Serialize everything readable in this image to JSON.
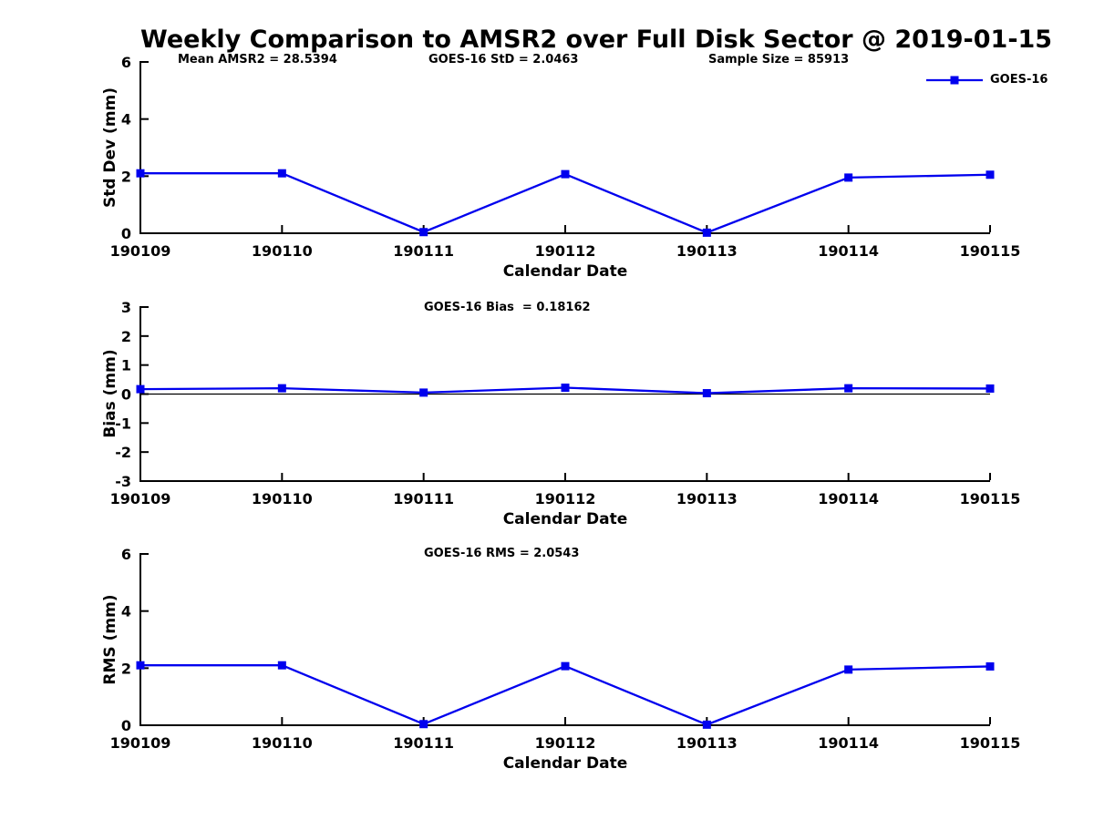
{
  "title": "Weekly Comparison to AMSR2 over Full Disk Sector @ 2019-01-15",
  "header_annotations": {
    "mean_amsr2": "Mean AMSR2 = 28.5394",
    "goes16_std": "GOES-16 StD = 2.0463",
    "sample_size": "Sample Size = 85913"
  },
  "legend": {
    "label": "GOES-16",
    "marker": "square",
    "position": "top-right"
  },
  "colors": {
    "line": "#0000ee",
    "axis": "#000000",
    "text": "#000000",
    "background": "#ffffff"
  },
  "chart_data": [
    {
      "type": "line",
      "name": "std-dev",
      "ylabel": "Std Dev (mm)",
      "xlabel": "Calendar Date",
      "categories": [
        "190109",
        "190110",
        "190111",
        "190112",
        "190113",
        "190114",
        "190115"
      ],
      "series": [
        {
          "name": "GOES-16",
          "values": [
            2.1,
            2.1,
            0.04,
            2.07,
            0.02,
            1.95,
            2.05
          ]
        }
      ],
      "ylim": [
        0,
        6
      ],
      "yticks": [
        0,
        2,
        4,
        6
      ],
      "grid": false,
      "zero_line": false
    },
    {
      "type": "line",
      "name": "bias",
      "annotation": "GOES-16 Bias  = 0.18162",
      "ylabel": "Bias (mm)",
      "xlabel": "Calendar Date",
      "categories": [
        "190109",
        "190110",
        "190111",
        "190112",
        "190113",
        "190114",
        "190115"
      ],
      "series": [
        {
          "name": "GOES-16",
          "values": [
            0.17,
            0.2,
            0.05,
            0.22,
            0.03,
            0.2,
            0.19
          ]
        }
      ],
      "ylim": [
        -3,
        3
      ],
      "yticks": [
        -3,
        -2,
        -1,
        0,
        1,
        2,
        3
      ],
      "grid": false,
      "zero_line": true
    },
    {
      "type": "line",
      "name": "rms",
      "annotation": "GOES-16 RMS = 2.0543",
      "ylabel": "RMS (mm)",
      "xlabel": "Calendar Date",
      "categories": [
        "190109",
        "190110",
        "190111",
        "190112",
        "190113",
        "190114",
        "190115"
      ],
      "series": [
        {
          "name": "GOES-16",
          "values": [
            2.1,
            2.1,
            0.04,
            2.07,
            0.02,
            1.95,
            2.06
          ]
        }
      ],
      "ylim": [
        0,
        6
      ],
      "yticks": [
        0,
        2,
        4,
        6
      ],
      "grid": false,
      "zero_line": false
    }
  ]
}
